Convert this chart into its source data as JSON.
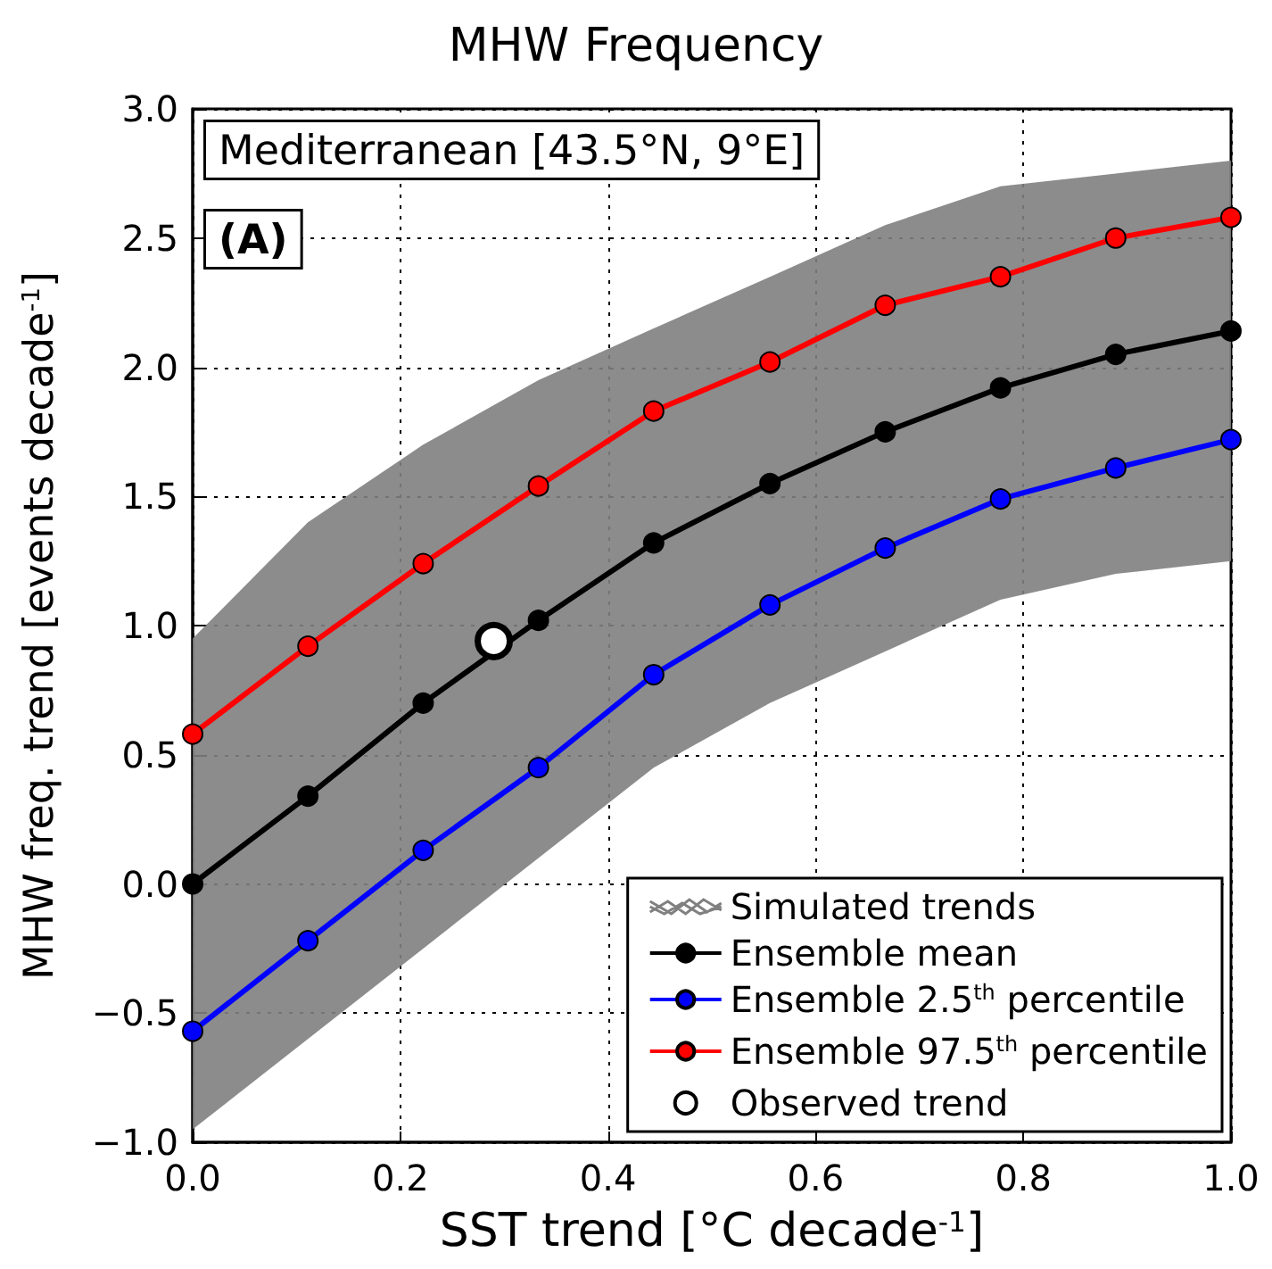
{
  "chart_data": {
    "type": "line",
    "title": "MHW Frequency",
    "xlabel": "SST trend [°C decade$^{-1}$]",
    "ylabel": "MHW freq. trend [events decade$^{-1}$]",
    "x": [
      0,
      0.111,
      0.222,
      0.333,
      0.444,
      0.556,
      0.667,
      0.778,
      0.889,
      1.0
    ],
    "series": [
      {
        "name": "Simulated trends",
        "color": "#808080",
        "values": [
          null,
          null,
          null,
          null,
          null,
          null,
          null,
          null,
          null,
          null
        ],
        "lower": [
          -0.95,
          -0.6,
          -0.25,
          0.1,
          0.45,
          0.7,
          0.9,
          1.1,
          1.2,
          1.25
        ],
        "upper": [
          0.95,
          1.4,
          1.7,
          1.95,
          2.15,
          2.35,
          2.55,
          2.7,
          2.75,
          2.8
        ]
      },
      {
        "name": "Ensemble mean",
        "color": "#000000",
        "values": [
          0.0,
          0.34,
          0.7,
          1.02,
          1.32,
          1.55,
          1.75,
          1.92,
          2.05,
          2.14
        ]
      },
      {
        "name": "Ensemble 2.5$^{th}$ percentile",
        "color": "#0000ff",
        "values": [
          -0.57,
          -0.22,
          0.13,
          0.45,
          0.81,
          1.08,
          1.3,
          1.49,
          1.61,
          1.72
        ]
      },
      {
        "name": "Ensemble 97.5$^{th}$ percentile",
        "color": "#ff0000",
        "values": [
          0.58,
          0.92,
          1.24,
          1.54,
          1.83,
          2.02,
          2.24,
          2.35,
          2.5,
          2.58
        ]
      },
      {
        "name": "Observed trend",
        "type": "scatter",
        "color": "#ffffff",
        "x": [
          0.29
        ],
        "values": [
          0.94
        ]
      }
    ],
    "annotations": [
      "Mediterranean [43.5°N, 9°E]",
      "(A)"
    ],
    "xlim": [
      0,
      1
    ],
    "xticks": [
      {
        "value": 0,
        "label": "0.0"
      },
      0.2,
      0.4,
      0.6,
      0.8,
      {
        "value": 1,
        "label": "1.0"
      }
    ],
    "ylim": [
      -1,
      3
    ],
    "yticks": [
      {
        "value": -1,
        "label": "−1.0"
      },
      {
        "value": -0.5,
        "label": "−0.5"
      },
      {
        "value": 0,
        "label": "0.0"
      },
      0.5,
      {
        "value": 1,
        "label": "1.0"
      },
      1.5,
      {
        "value": 2,
        "label": "2.0"
      },
      2.5,
      {
        "value": 3,
        "label": "3.0"
      }
    ],
    "grid": true,
    "legend": "bottom right",
    "marker": "circle",
    "line_style": "solid"
  }
}
